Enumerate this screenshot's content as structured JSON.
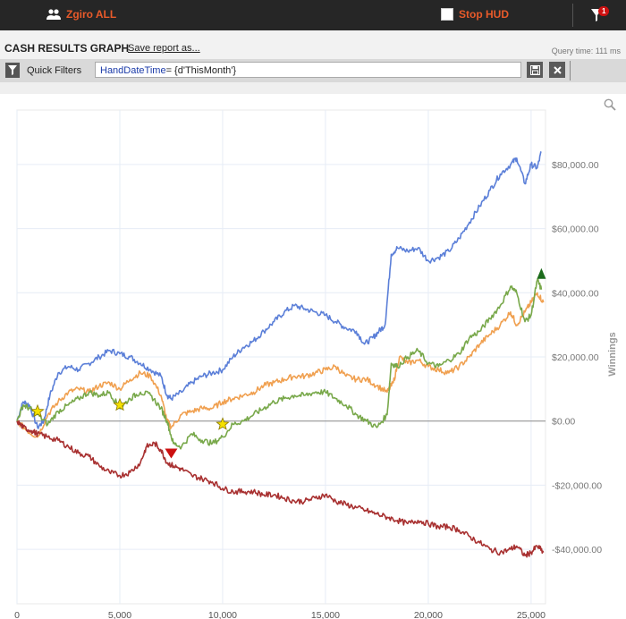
{
  "topbar": {
    "user_label": "Zgiro ALL",
    "hud_label": "Stop HUD",
    "filter_badge": "1"
  },
  "header": {
    "title": "CASH RESULTS GRAPH",
    "save_label": "Save report as...",
    "query_time": "Query time: 111 ms"
  },
  "filters": {
    "label": "Quick Filters",
    "expr_keyword": "HandDateTime",
    "expr_rest": "= {d'ThisMonth'}"
  },
  "chart_data": {
    "type": "line",
    "xlim": [
      0,
      25700
    ],
    "ylim": [
      -57000,
      97000
    ],
    "x_ticks": [
      0,
      5000,
      10000,
      15000,
      20000,
      25000
    ],
    "x_tick_labels": [
      "0",
      "5,000",
      "10,000",
      "15,000",
      "20,000",
      "25,000"
    ],
    "y_ticks": [
      80000,
      60000,
      40000,
      20000,
      0,
      -20000,
      -40000
    ],
    "y_tick_labels": [
      "$80,000.00",
      "$60,000.00",
      "$40,000.00",
      "$20,000.00",
      "$0.00",
      "-$20,000.00",
      "-$40,000.00"
    ],
    "ylabel": "Winnings",
    "series": [
      {
        "color": "#5b7fd8",
        "x": [
          0,
          300,
          600,
          1000,
          1300,
          1600,
          2000,
          2500,
          3000,
          3500,
          4000,
          4500,
          5000,
          5500,
          6000,
          6500,
          7000,
          7300,
          7500,
          8000,
          8500,
          9000,
          9500,
          10000,
          10500,
          11000,
          11500,
          12000,
          12500,
          13000,
          13500,
          14000,
          14500,
          15000,
          15500,
          16000,
          16500,
          16900,
          17300,
          17600,
          17900,
          18200,
          18500,
          19000,
          19500,
          20000,
          20500,
          21000,
          21500,
          22000,
          22500,
          23000,
          23500,
          24000,
          24300,
          24700,
          25000,
          25300,
          25500
        ],
        "y": [
          0,
          6000,
          5000,
          -2000,
          0,
          8000,
          15000,
          17000,
          16000,
          18000,
          20000,
          22000,
          21000,
          20000,
          18000,
          16000,
          14000,
          8000,
          7000,
          9000,
          12000,
          14000,
          15000,
          16000,
          20000,
          23000,
          25000,
          28000,
          31000,
          34000,
          36000,
          35000,
          34000,
          33000,
          31000,
          29000,
          28000,
          24000,
          26000,
          28000,
          30000,
          52000,
          54000,
          53000,
          54000,
          50000,
          51000,
          53000,
          57000,
          62000,
          67000,
          72000,
          77000,
          80000,
          82000,
          74000,
          80000,
          79000,
          84000
        ]
      },
      {
        "color": "#f0a050",
        "x": [
          0,
          500,
          1000,
          1500,
          2000,
          2500,
          3000,
          3500,
          4000,
          4500,
          5000,
          5500,
          6000,
          6500,
          7000,
          7300,
          7500,
          8000,
          8500,
          9000,
          9500,
          10000,
          10500,
          11000,
          11500,
          12000,
          12500,
          13000,
          13500,
          14000,
          14500,
          15000,
          15500,
          16000,
          16500,
          17000,
          17500,
          18000,
          18300,
          18600,
          19000,
          19500,
          20000,
          20500,
          21000,
          21500,
          22000,
          22500,
          23000,
          23500,
          24000,
          24300,
          24700,
          25000,
          25300,
          25600
        ],
        "y": [
          0,
          -3000,
          -5000,
          2000,
          6000,
          9000,
          10000,
          9000,
          11000,
          12000,
          10000,
          13000,
          15000,
          14000,
          8000,
          0,
          -2000,
          2000,
          3000,
          4000,
          4000,
          6000,
          7000,
          8000,
          9000,
          11000,
          12000,
          13000,
          14000,
          14000,
          15000,
          16000,
          17000,
          14000,
          13000,
          13000,
          11000,
          9000,
          12000,
          20000,
          18000,
          19000,
          17000,
          16000,
          15000,
          17000,
          20000,
          24000,
          27000,
          30000,
          34000,
          30000,
          34000,
          37000,
          40000,
          37000
        ]
      },
      {
        "color": "#78a84a",
        "x": [
          0,
          300,
          600,
          1000,
          1500,
          2000,
          2500,
          3000,
          3500,
          4000,
          4500,
          5000,
          5500,
          6000,
          6500,
          7000,
          7300,
          7600,
          8000,
          8500,
          9000,
          9500,
          10000,
          10500,
          11000,
          11500,
          12000,
          12500,
          13000,
          13500,
          14000,
          14500,
          15000,
          15500,
          16000,
          16500,
          17000,
          17500,
          18000,
          18200,
          18500,
          19000,
          19500,
          20000,
          20500,
          21000,
          21500,
          22000,
          22500,
          23000,
          23500,
          24000,
          24300,
          24700,
          25000,
          25300,
          25500
        ],
        "y": [
          0,
          5000,
          4000,
          2000,
          -1000,
          3000,
          5000,
          7000,
          9000,
          8000,
          9000,
          4000,
          7000,
          9000,
          8000,
          4000,
          0,
          -7000,
          -8000,
          -4000,
          -6000,
          -7000,
          -5000,
          -1000,
          0,
          2000,
          4000,
          6000,
          7000,
          8000,
          8000,
          9000,
          9000,
          7000,
          5000,
          2000,
          0,
          -2000,
          2000,
          18000,
          17000,
          20000,
          22000,
          18000,
          17000,
          19000,
          21000,
          26000,
          28000,
          32000,
          36000,
          42000,
          40000,
          31000,
          33000,
          44000,
          41000
        ]
      },
      {
        "color": "#a83030",
        "x": [
          0,
          300,
          700,
          1000,
          1500,
          2000,
          2500,
          3000,
          3500,
          4000,
          4500,
          5000,
          5500,
          6000,
          6300,
          6700,
          7000,
          7300,
          7600,
          8000,
          8500,
          9000,
          9500,
          10000,
          10500,
          11000,
          11500,
          12000,
          12500,
          13000,
          13500,
          14000,
          14500,
          15000,
          15500,
          16000,
          16500,
          17000,
          17500,
          18000,
          18500,
          19000,
          19500,
          20000,
          20500,
          21000,
          21500,
          22000,
          22500,
          23000,
          23500,
          24000,
          24300,
          24700,
          25000,
          25300,
          25600
        ],
        "y": [
          0,
          -2000,
          -3000,
          -4000,
          -5000,
          -6000,
          -8000,
          -10000,
          -11000,
          -14000,
          -16000,
          -17000,
          -16000,
          -13000,
          -8000,
          -7000,
          -9000,
          -13000,
          -14000,
          -15000,
          -17000,
          -18000,
          -19000,
          -21000,
          -22000,
          -22000,
          -22000,
          -23000,
          -23000,
          -24000,
          -25000,
          -25000,
          -24000,
          -23000,
          -25000,
          -26000,
          -27000,
          -28000,
          -29000,
          -30000,
          -31000,
          -32000,
          -31000,
          -32000,
          -33000,
          -33000,
          -34000,
          -36000,
          -38000,
          -40000,
          -41000,
          -40000,
          -39000,
          -42000,
          -41000,
          -39000,
          -41000
        ]
      }
    ],
    "markers": [
      {
        "shape": "star",
        "x": 1000,
        "y": 3000,
        "color": "#f5e000"
      },
      {
        "shape": "star",
        "x": 5000,
        "y": 5000,
        "color": "#f5e000"
      },
      {
        "shape": "star",
        "x": 10000,
        "y": -1000,
        "color": "#f5e000"
      },
      {
        "shape": "triangle-down",
        "x": 7500,
        "y": -10000,
        "color": "#cc1010"
      },
      {
        "shape": "triangle-up",
        "x": 25500,
        "y": 46000,
        "color": "#1a6a1a"
      }
    ],
    "grid": true
  }
}
